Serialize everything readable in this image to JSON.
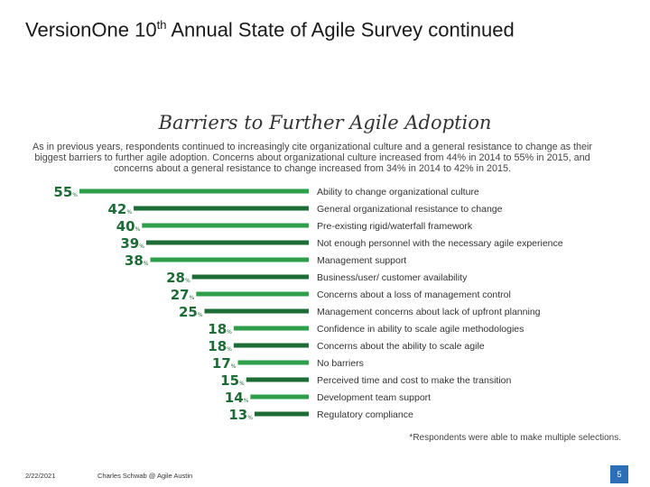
{
  "header": {
    "title_pre": "Version",
    "title_brand": "One",
    "title_num": " 10",
    "title_sup": "th",
    "title_post": " Annual State of Agile Survey continued"
  },
  "chart_data": {
    "type": "bar",
    "orientation": "horizontal",
    "title": "Barriers to Further Agile Adoption",
    "subtitle": "As in previous years, respondents continued to increasingly cite organizational culture and a general resistance to change as their biggest barriers to further agile adoption. Concerns about organizational culture increased from 44% in 2014 to 55% in 2015, and concerns about a general resistance to change increased from 34% in 2014 to 42% in 2015.",
    "categories": [
      "Ability to change organizational culture",
      "General organizational resistance to change",
      "Pre-existing rigid/waterfall framework",
      "Not enough personnel with the necessary agile experience",
      "Management support",
      "Business/user/ customer availability",
      "Concerns about a loss of management control",
      "Management concerns about lack of upfront planning",
      "Confidence in ability to scale agile methodologies",
      "Concerns about the ability to scale agile",
      "No barriers",
      "Perceived time and cost to make the transition",
      "Development team support",
      "Regulatory compliance"
    ],
    "values": [
      55,
      42,
      40,
      39,
      38,
      28,
      27,
      25,
      18,
      18,
      17,
      15,
      14,
      13
    ],
    "unit": "%",
    "xlim": [
      0,
      55
    ],
    "colors": {
      "bar_primary": "#2e9e4a",
      "bar_alt": "#1d6b35",
      "value_label": "#1d6b35"
    },
    "footnote": "*Respondents were able to make multiple selections."
  },
  "footer": {
    "date": "2/22/2021",
    "credit": "Charles Schwab @ Agile Austin",
    "page": "5"
  }
}
